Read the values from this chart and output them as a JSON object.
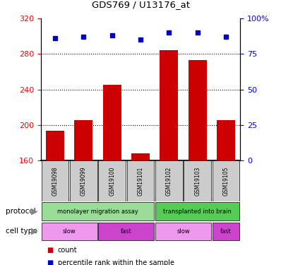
{
  "title": "GDS769 / U13176_at",
  "samples": [
    "GSM19098",
    "GSM19099",
    "GSM19100",
    "GSM19101",
    "GSM19102",
    "GSM19103",
    "GSM19105"
  ],
  "bar_values": [
    193,
    205,
    245,
    168,
    284,
    273,
    205
  ],
  "percentile_values": [
    86,
    87,
    88,
    85,
    90,
    90,
    87
  ],
  "ylim_left": [
    160,
    320
  ],
  "ylim_right": [
    0,
    100
  ],
  "yticks_left": [
    160,
    200,
    240,
    280,
    320
  ],
  "yticks_right": [
    0,
    25,
    50,
    75,
    100
  ],
  "bar_color": "#cc0000",
  "dot_color": "#0000cc",
  "label_bg": "#cccccc",
  "protocol_groups": [
    {
      "label": "monolayer migration assay",
      "start": 0,
      "end": 4,
      "color": "#99dd99"
    },
    {
      "label": "transplanted into brain",
      "start": 4,
      "end": 7,
      "color": "#55cc55"
    }
  ],
  "celltype_groups": [
    {
      "label": "slow",
      "start": 0,
      "end": 2,
      "color": "#ee99ee"
    },
    {
      "label": "fast",
      "start": 2,
      "end": 4,
      "color": "#cc44cc"
    },
    {
      "label": "slow",
      "start": 4,
      "end": 6,
      "color": "#ee99ee"
    },
    {
      "label": "fast",
      "start": 6,
      "end": 7,
      "color": "#cc44cc"
    }
  ],
  "grid_yticks": [
    200,
    240,
    280
  ],
  "arrow_color": "#888888"
}
